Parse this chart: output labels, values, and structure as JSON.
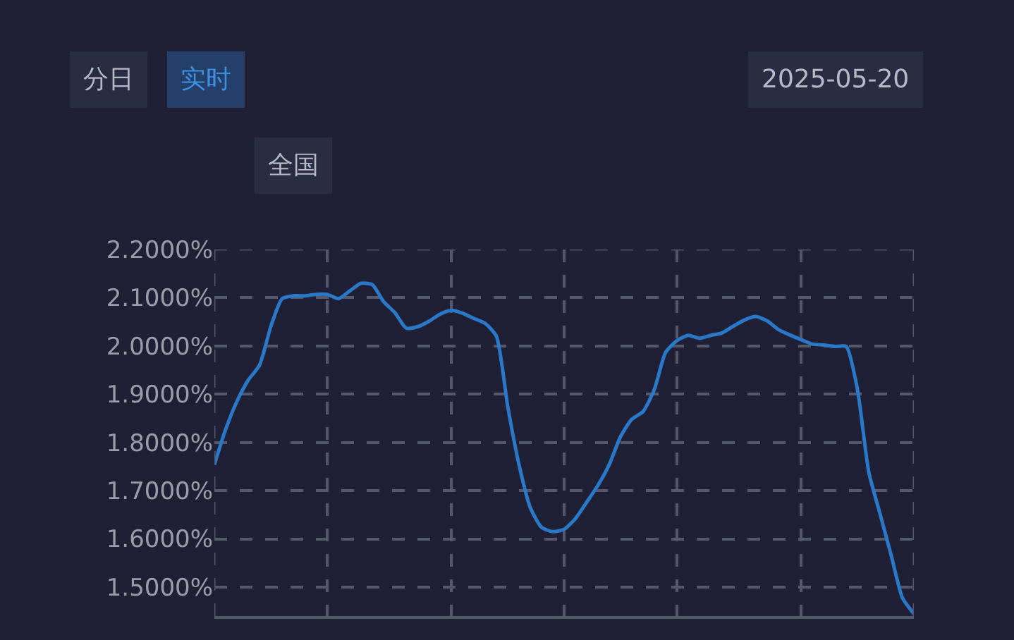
{
  "chart_data": {
    "type": "line",
    "annotations": [
      "分日",
      "实时",
      "2025-05-20",
      "全国"
    ],
    "categories": [
      null,
      null,
      null,
      null,
      null,
      null,
      null,
      null,
      null,
      null,
      null,
      null,
      null,
      null,
      null,
      null,
      null,
      null,
      null,
      null,
      null,
      null,
      null,
      null,
      null,
      null,
      null,
      null,
      null,
      null,
      null,
      null,
      null,
      null,
      null,
      null,
      null,
      null,
      null,
      null,
      null,
      null,
      null,
      null,
      null,
      null,
      null,
      null,
      null,
      null,
      null,
      null,
      null,
      null,
      null,
      null,
      null,
      null,
      null,
      null,
      null,
      null,
      null
    ],
    "series": [
      {
        "color": "#2a78c8",
        "values": [
          1.754,
          1.827,
          1.885,
          1.929,
          1.96,
          2.04,
          2.098,
          2.104,
          2.104,
          2.107,
          2.107,
          2.098,
          2.114,
          2.13,
          2.127,
          2.092,
          2.069,
          2.037,
          2.04,
          2.051,
          2.066,
          2.074,
          2.068,
          2.057,
          2.047,
          2.02,
          1.875,
          1.754,
          1.665,
          1.624,
          1.615,
          1.62,
          1.642,
          1.676,
          1.711,
          1.754,
          1.812,
          1.848,
          1.864,
          1.91,
          1.987,
          2.011,
          2.022,
          2.016,
          2.022,
          2.027,
          2.041,
          2.054,
          2.061,
          2.052,
          2.034,
          2.023,
          2.013,
          2.004,
          2.002,
          1.999,
          1.999,
          1.91,
          1.739,
          1.652,
          1.565,
          1.477,
          1.445
        ]
      }
    ],
    "ylim": [
      1.44,
      2.2
    ],
    "yticks": [
      {
        "value": 1.5,
        "label": "1.5000%"
      },
      {
        "value": 1.6,
        "label": "1.6000%"
      },
      {
        "value": 1.7,
        "label": "1.7000%"
      },
      {
        "value": 1.8,
        "label": "1.8000%"
      },
      {
        "value": 1.9,
        "label": "1.9000%"
      },
      {
        "value": 2.0,
        "label": "2.0000%"
      },
      {
        "value": 2.1,
        "label": "2.1000%"
      },
      {
        "value": 2.2,
        "label": "2.2000%"
      }
    ],
    "grid": true,
    "marker": "none",
    "line_style": "solid"
  }
}
